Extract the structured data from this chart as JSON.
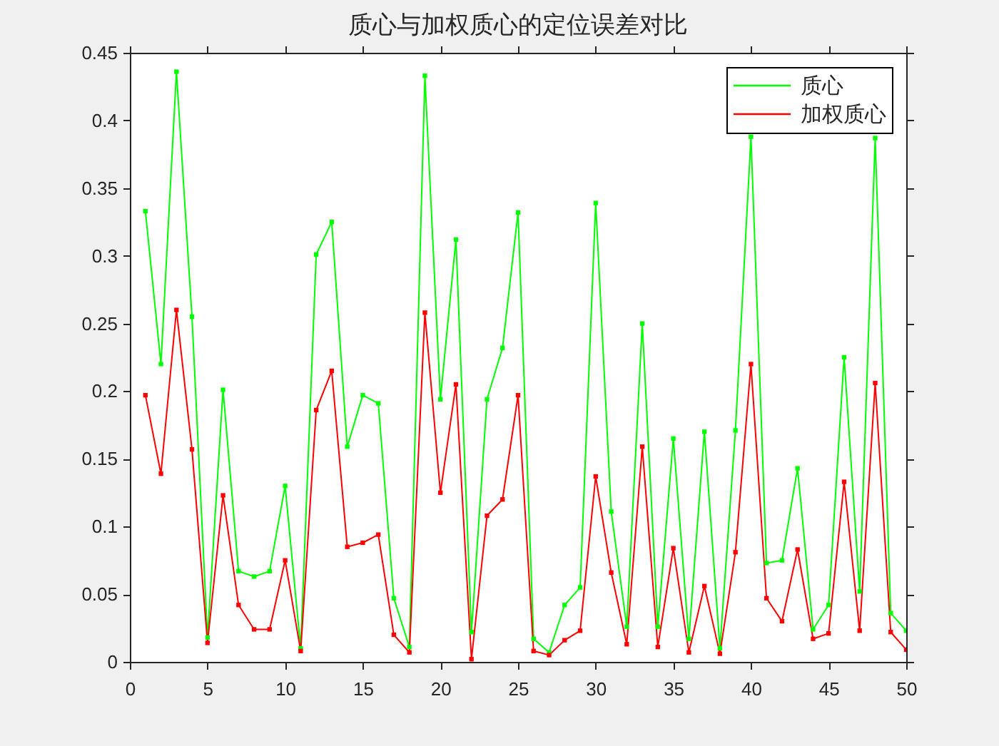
{
  "chart_data": {
    "type": "line",
    "title": "质心与加权质心的定位误差对比",
    "x": [
      1,
      2,
      3,
      4,
      5,
      6,
      7,
      8,
      9,
      10,
      11,
      12,
      13,
      14,
      15,
      16,
      17,
      18,
      19,
      20,
      21,
      22,
      23,
      24,
      25,
      26,
      27,
      28,
      29,
      30,
      31,
      32,
      33,
      34,
      35,
      36,
      37,
      38,
      39,
      40,
      41,
      42,
      43,
      44,
      45,
      46,
      47,
      48,
      49,
      50
    ],
    "series": [
      {
        "name": "质心",
        "color": "#00ff00",
        "values": [
          0.333,
          0.22,
          0.436,
          0.255,
          0.018,
          0.201,
          0.067,
          0.063,
          0.067,
          0.13,
          0.01,
          0.301,
          0.325,
          0.159,
          0.197,
          0.191,
          0.047,
          0.011,
          0.433,
          0.194,
          0.312,
          0.022,
          0.194,
          0.232,
          0.332,
          0.017,
          0.007,
          0.042,
          0.055,
          0.339,
          0.111,
          0.026,
          0.25,
          0.026,
          0.165,
          0.017,
          0.17,
          0.01,
          0.171,
          0.388,
          0.073,
          0.075,
          0.143,
          0.024,
          0.042,
          0.225,
          0.052,
          0.387,
          0.036,
          0.023
        ]
      },
      {
        "name": "加权质心",
        "color": "#ff0000",
        "values": [
          0.197,
          0.139,
          0.26,
          0.157,
          0.014,
          0.123,
          0.042,
          0.024,
          0.024,
          0.075,
          0.008,
          0.186,
          0.215,
          0.085,
          0.088,
          0.094,
          0.02,
          0.007,
          0.258,
          0.125,
          0.205,
          0.002,
          0.108,
          0.12,
          0.197,
          0.008,
          0.005,
          0.016,
          0.023,
          0.137,
          0.066,
          0.013,
          0.159,
          0.011,
          0.084,
          0.007,
          0.056,
          0.006,
          0.081,
          0.22,
          0.047,
          0.03,
          0.083,
          0.017,
          0.021,
          0.133,
          0.023,
          0.206,
          0.022,
          0.009
        ]
      }
    ],
    "xlim": [
      0,
      50
    ],
    "xticks": [
      0,
      5,
      10,
      15,
      20,
      25,
      30,
      35,
      40,
      45,
      50
    ],
    "ylim": [
      0,
      0.45
    ],
    "yticks": [
      0,
      0.05,
      0.1,
      0.15,
      0.2,
      0.25,
      0.3,
      0.35,
      0.4,
      0.45
    ],
    "legend": "top right",
    "marker": "square",
    "line_style": "solid"
  }
}
